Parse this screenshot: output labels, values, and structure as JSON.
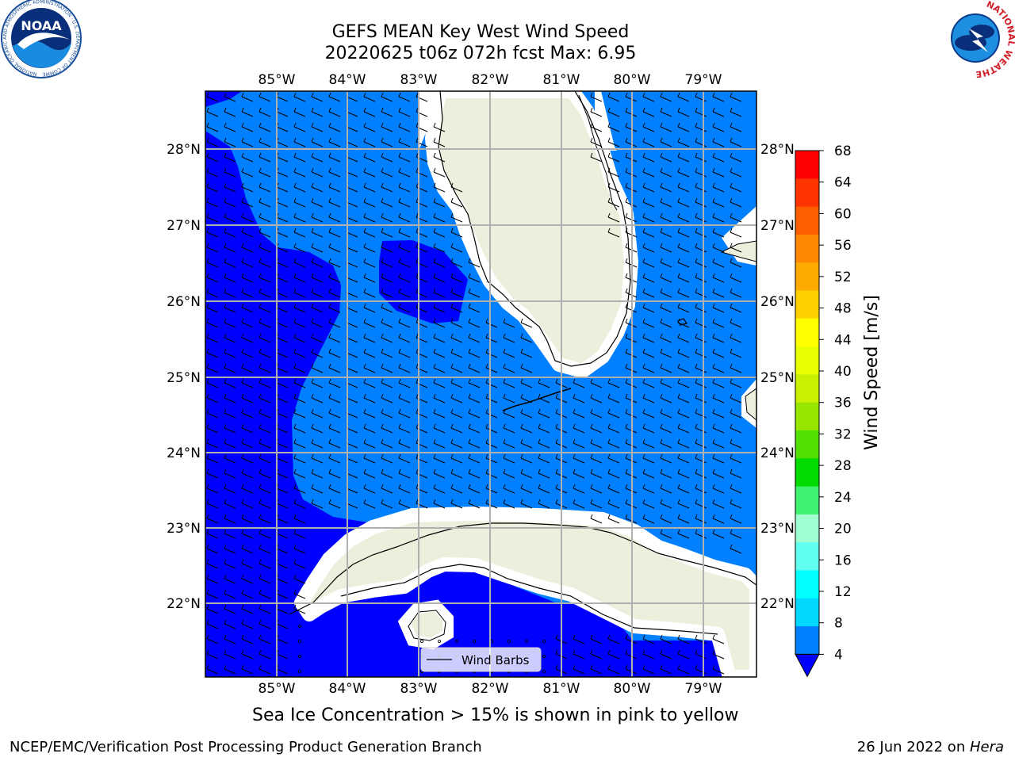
{
  "title": {
    "line1": "GEFS MEAN Key West Wind Speed",
    "line2": "20220625 t06z 072h fcst   Max: 6.95"
  },
  "logos": {
    "left": {
      "text": "NOAA",
      "ring_text": "NATIONAL OCEANIC AND ATMOSPHERIC ADMINISTRATION · U.S. DEPARTMENT OF COMMERCE",
      "icon": "noaa-logo"
    },
    "right": {
      "ring_text": "NATIONAL WEATHER SERVICE",
      "icon": "nws-logo"
    }
  },
  "map": {
    "lon_labels": [
      "85°W",
      "84°W",
      "83°W",
      "82°W",
      "81°W",
      "80°W",
      "79°W"
    ],
    "lat_labels": [
      "28°N",
      "27°N",
      "26°N",
      "25°N",
      "24°N",
      "23°N",
      "22°N"
    ],
    "legend_label": "Wind Barbs",
    "colors": {
      "land": "#eeeedd",
      "below_4": "#0000ff",
      "range_4_8": "#0080ff",
      "grid": "#b0b0b0"
    }
  },
  "colorbar": {
    "label": "Wind Speed [m/s]",
    "ticks": [
      "68",
      "64",
      "60",
      "56",
      "52",
      "48",
      "44",
      "40",
      "36",
      "32",
      "28",
      "24",
      "20",
      "16",
      "12",
      "8",
      "4"
    ],
    "colors": [
      "#ff0000",
      "#ff3300",
      "#ff5f00",
      "#ff8800",
      "#ffaa00",
      "#ffd000",
      "#ffff00",
      "#e8ff00",
      "#c8f000",
      "#96e600",
      "#50e000",
      "#00dc00",
      "#40f070",
      "#a0ffd0",
      "#60fff0",
      "#00ffff",
      "#00d8ff",
      "#0080ff"
    ],
    "under_color": "#0000ff"
  },
  "caption": "Sea Ice Concentration > 15% is shown in pink to yellow",
  "footer": {
    "left": "NCEP/EMC/Verification Post Processing Product Generation Branch",
    "date": "26 Jun 2022 on ",
    "machine": "Hera"
  }
}
